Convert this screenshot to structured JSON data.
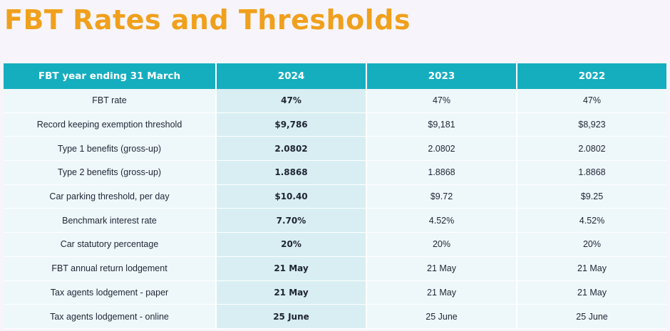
{
  "page": {
    "title": "FBT Rates and Thresholds",
    "colors": {
      "title": "#f0a01c",
      "header_bg": "#15aebf",
      "header_text": "#ffffff",
      "row_bg": "#eef8fb",
      "highlight_col_bg": "#d8eef2"
    }
  },
  "table": {
    "headers": [
      "FBT year ending 31 March",
      "2024",
      "2023",
      "2022"
    ],
    "rows": [
      [
        "FBT rate",
        "47%",
        "47%",
        "47%"
      ],
      [
        "Record keeping exemption threshold",
        "$9,786",
        "$9,181",
        "$8,923"
      ],
      [
        "Type 1 benefits (gross-up)",
        "2.0802",
        "2.0802",
        "2.0802"
      ],
      [
        "Type 2 benefits (gross-up)",
        "1.8868",
        "1.8868",
        "1.8868"
      ],
      [
        "Car parking threshold, per day",
        "$10.40",
        "$9.72",
        "$9.25"
      ],
      [
        "Benchmark interest rate",
        "7.70%",
        "4.52%",
        "4.52%"
      ],
      [
        "Car statutory percentage",
        "20%",
        "20%",
        "20%"
      ],
      [
        "FBT annual return lodgement",
        "21 May",
        "21 May",
        "21 May"
      ],
      [
        "Tax agents lodgement - paper",
        "21 May",
        "21 May",
        "21 May"
      ],
      [
        "Tax agents lodgement - online",
        "25 June",
        "25 June",
        "25 June"
      ]
    ]
  }
}
